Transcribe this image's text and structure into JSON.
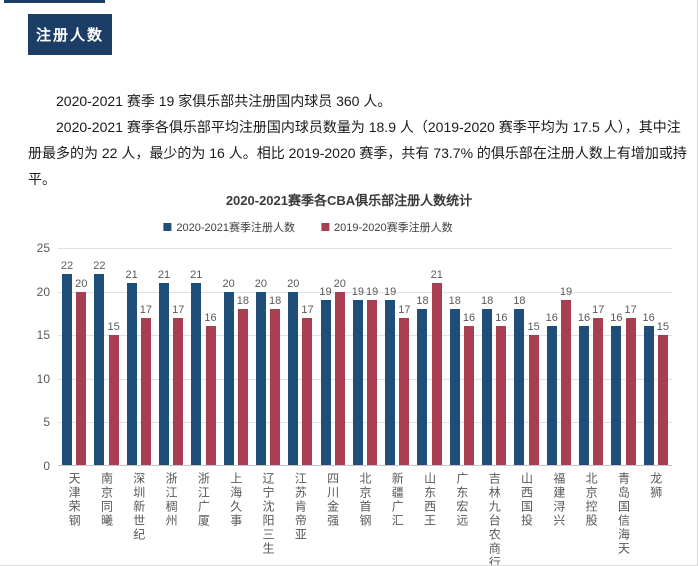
{
  "header": {
    "tag_label": "注册人数"
  },
  "paragraphs": [
    "2020-2021 赛季 19 家俱乐部共注册国内球员 360 人。",
    "2020-2021 赛季各俱乐部平均注册国内球员数量为 18.9 人（2019-2020 赛季平均为 17.5 人），其中注册最多的为 22 人，最少的为 16 人。相比 2019-2020 赛季，共有 73.7% 的俱乐部在注册人数上有增加或持平。"
  ],
  "chart_data": {
    "type": "bar",
    "title": "2020-2021赛季各CBA俱乐部注册人数统计",
    "categories": [
      "天津荣钢",
      "南京同曦",
      "深圳新世纪",
      "浙江稠州",
      "浙江广厦",
      "上海久事",
      "辽宁沈阳三生",
      "江苏肯帝亚",
      "四川金强",
      "北京首钢",
      "新疆广汇",
      "山东西王",
      "广东宏远",
      "吉林九台农商行",
      "山西国投",
      "福建浔兴",
      "北京控股",
      "青岛国信海天",
      "龙狮"
    ],
    "series": [
      {
        "name": "2020-2021赛季注册人数",
        "color": "#1F4E79",
        "values": [
          22,
          22,
          21,
          21,
          21,
          20,
          20,
          20,
          19,
          19,
          19,
          18,
          18,
          18,
          18,
          16,
          16,
          16,
          16
        ]
      },
      {
        "name": "2019-2020赛季注册人数",
        "color": "#A83E51",
        "values": [
          20,
          15,
          17,
          17,
          16,
          18,
          18,
          17,
          20,
          19,
          17,
          21,
          16,
          16,
          15,
          19,
          17,
          17,
          15
        ]
      }
    ],
    "ylim": [
      0,
      25
    ],
    "yticks": [
      0,
      5,
      10,
      15,
      20,
      25
    ],
    "grid": "horizontal",
    "legend_position": "top",
    "value_labels": true,
    "xlabel": "",
    "ylabel": ""
  }
}
